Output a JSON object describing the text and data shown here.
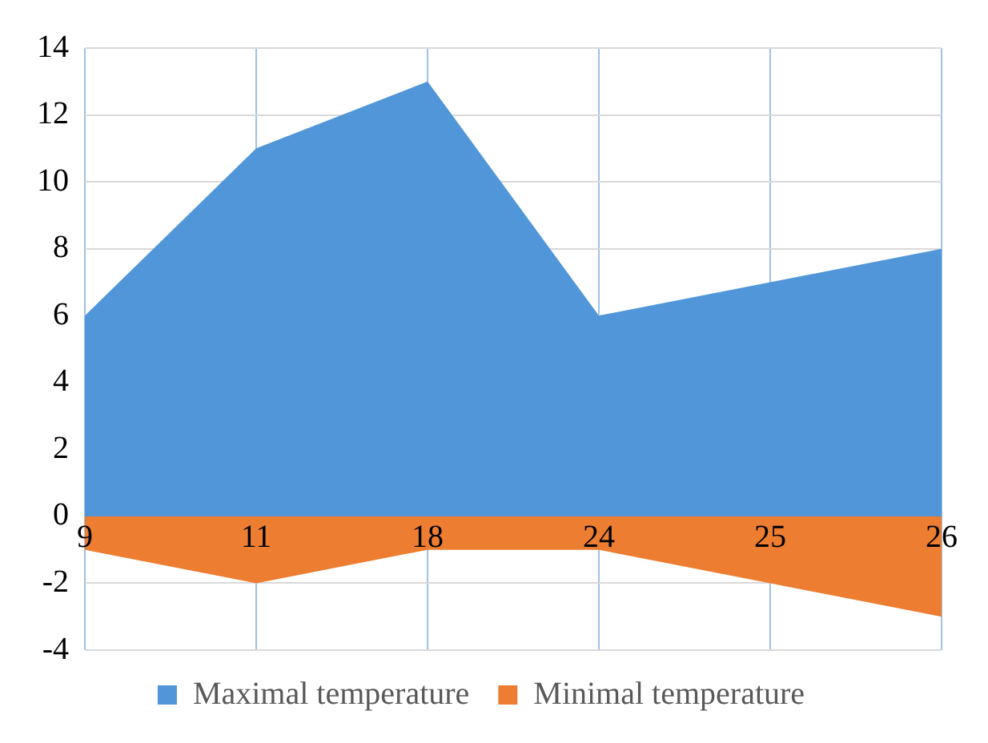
{
  "chart_data": {
    "type": "area",
    "categories": [
      "9",
      "11",
      "18",
      "24",
      "25",
      "26"
    ],
    "series": [
      {
        "name": "Maximal temperature",
        "color": "#5096d8",
        "values": [
          6,
          11,
          13,
          6,
          7,
          8
        ]
      },
      {
        "name": "Minimal temperature",
        "color": "#ed7d31",
        "values": [
          -1,
          -2,
          -1,
          -1,
          -2,
          -3
        ]
      }
    ],
    "ylim": [
      -4,
      14
    ],
    "yticks": [
      -4,
      -2,
      0,
      2,
      4,
      6,
      8,
      10,
      12,
      14
    ],
    "grid": true,
    "legend": "bottom"
  }
}
